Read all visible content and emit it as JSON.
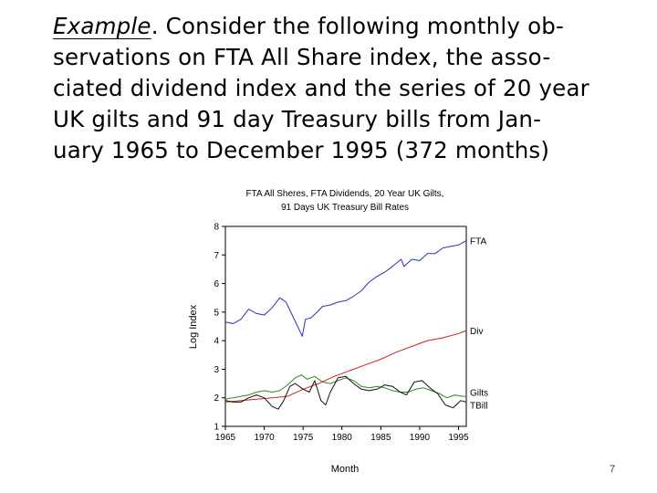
{
  "intro": {
    "lines": [
      "Example. Consider the following monthly ob-",
      "servations on FTA All Share index, the asso-",
      "ciated dividend index and the series of 20 year",
      "UK gilts and 91 day Treasury bills from Jan-",
      "uary 1965 to December 1995 (372 months)"
    ],
    "line1_lead": "Example",
    "line1_rest": ". Consider the following monthly ob-"
  },
  "page_number": "7",
  "chart_data": {
    "type": "line",
    "title": "FTA All Sheres, FTA Dividends, 20 Year UK Gilts,",
    "subtitle": "91 Days UK Treasury Bill Rates",
    "xlabel": "Month",
    "ylabel": "Log Index",
    "xlim": [
      1965,
      1996
    ],
    "ylim": [
      1,
      8
    ],
    "xticks": [
      "1965",
      "1970",
      "1975",
      "1980",
      "1985",
      "1990",
      "1995"
    ],
    "yticks": [
      "1",
      "2",
      "3",
      "4",
      "5",
      "6",
      "7",
      "8"
    ],
    "grid": false,
    "legend": "labels at right end of each series",
    "series": [
      {
        "name": "FTA",
        "color": "#2b34b8",
        "x": [
          1965,
          1966,
          1967,
          1968,
          1969,
          1970,
          1971,
          1972,
          1972.8,
          1973.5,
          1974.3,
          1974.9,
          1975.3,
          1976,
          1976.8,
          1977.5,
          1978.5,
          1979.5,
          1980.5,
          1981.5,
          1982.5,
          1983.5,
          1984.5,
          1985.5,
          1986.5,
          1987.6,
          1988,
          1989,
          1990,
          1991,
          1992,
          1993,
          1994,
          1995,
          1996
        ],
        "y": [
          4.65,
          4.6,
          4.75,
          5.1,
          4.95,
          4.9,
          5.15,
          5.5,
          5.35,
          4.95,
          4.5,
          4.15,
          4.75,
          4.8,
          5.0,
          5.2,
          5.25,
          5.35,
          5.4,
          5.55,
          5.75,
          6.05,
          6.25,
          6.4,
          6.6,
          6.85,
          6.6,
          6.85,
          6.8,
          7.05,
          7.05,
          7.25,
          7.3,
          7.35,
          7.5
        ]
      },
      {
        "name": "Div",
        "color": "#d42020",
        "x": [
          1965,
          1967,
          1969,
          1971,
          1973,
          1975,
          1977,
          1979,
          1981,
          1983,
          1985,
          1987,
          1989,
          1991,
          1993,
          1995,
          1996
        ],
        "y": [
          1.85,
          1.9,
          1.95,
          2.0,
          2.05,
          2.3,
          2.5,
          2.75,
          2.95,
          3.15,
          3.35,
          3.6,
          3.8,
          4.0,
          4.1,
          4.25,
          4.35
        ]
      },
      {
        "name": "Gilts",
        "color": "#2c8a2c",
        "x": [
          1965,
          1966,
          1967,
          1968,
          1969,
          1970,
          1971,
          1972,
          1973,
          1974,
          1974.8,
          1975.5,
          1976.5,
          1977.5,
          1978.5,
          1979.5,
          1980.5,
          1981.5,
          1982.5,
          1983.5,
          1984.5,
          1985.5,
          1986.5,
          1987.5,
          1988.5,
          1989.5,
          1990.5,
          1991.5,
          1992.5,
          1993.5,
          1994.5,
          1995.5,
          1996
        ],
        "y": [
          1.95,
          2.0,
          2.05,
          2.1,
          2.2,
          2.25,
          2.2,
          2.25,
          2.45,
          2.7,
          2.8,
          2.65,
          2.75,
          2.55,
          2.5,
          2.6,
          2.7,
          2.6,
          2.4,
          2.35,
          2.4,
          2.35,
          2.25,
          2.2,
          2.2,
          2.3,
          2.35,
          2.25,
          2.15,
          2.0,
          2.1,
          2.05,
          2.05
        ]
      },
      {
        "name": "TBill",
        "color": "#111111",
        "x": [
          1965,
          1966,
          1967,
          1968,
          1969,
          1970,
          1971,
          1971.8,
          1972.5,
          1973.3,
          1974,
          1975,
          1975.8,
          1976.5,
          1977.3,
          1977.9,
          1978.5,
          1979.5,
          1980.5,
          1981.5,
          1982.5,
          1983.5,
          1984.5,
          1985.5,
          1986.5,
          1987.5,
          1988.3,
          1989.3,
          1990.3,
          1991.3,
          1992.3,
          1993.3,
          1994.3,
          1995.3,
          1996
        ],
        "y": [
          1.9,
          1.85,
          1.85,
          2.0,
          2.1,
          2.0,
          1.7,
          1.6,
          1.9,
          2.4,
          2.5,
          2.3,
          2.2,
          2.6,
          1.9,
          1.75,
          2.2,
          2.7,
          2.75,
          2.5,
          2.3,
          2.25,
          2.3,
          2.45,
          2.4,
          2.2,
          2.1,
          2.55,
          2.6,
          2.35,
          2.15,
          1.75,
          1.65,
          1.9,
          1.85
        ]
      }
    ]
  }
}
